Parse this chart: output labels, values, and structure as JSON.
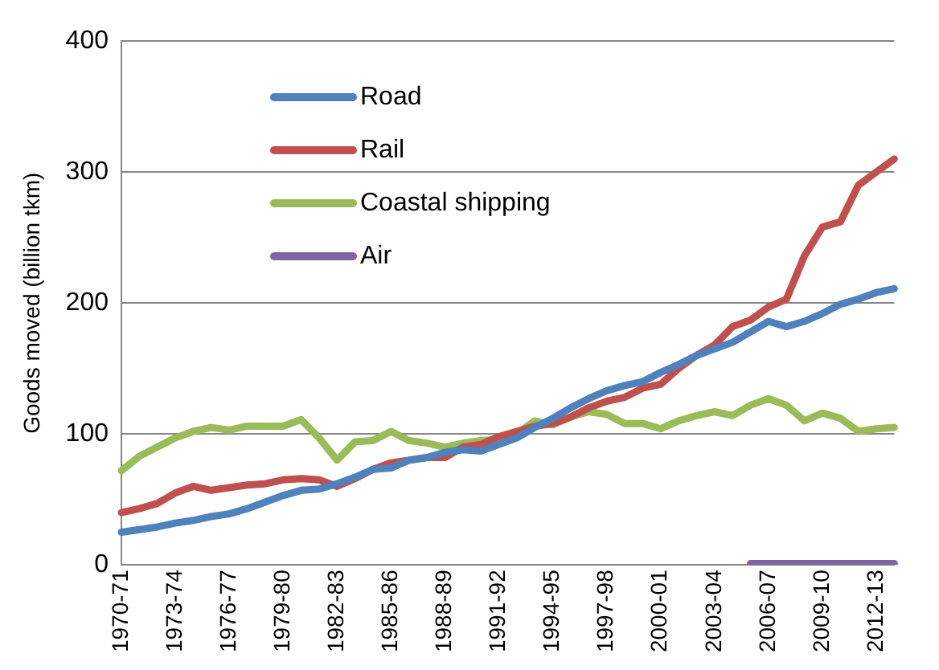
{
  "chart_data": {
    "type": "line",
    "ylabel": "Goods moved (billion tkm)",
    "categories": [
      "1970-71",
      null,
      null,
      "1973-74",
      null,
      null,
      "1976-77",
      null,
      null,
      "1979-80",
      null,
      null,
      "1982-83",
      null,
      null,
      "1985-86",
      null,
      null,
      "1988-89",
      null,
      null,
      "1991-92",
      null,
      null,
      "1994-95",
      null,
      null,
      "1997-98",
      null,
      null,
      "2000-01",
      null,
      null,
      "2003-04",
      null,
      null,
      "2006-07",
      null,
      null,
      "2009-10",
      null,
      null,
      "2012-13",
      null
    ],
    "series": [
      {
        "name": "Road",
        "color": "#4f81bd",
        "values": [
          25,
          27,
          29,
          32,
          34,
          37,
          39,
          43,
          48,
          53,
          57,
          58,
          62,
          67,
          73,
          74,
          80,
          82,
          86,
          88,
          87,
          92,
          97,
          105,
          112,
          120,
          127,
          133,
          137,
          140,
          147,
          153,
          160,
          165,
          170,
          178,
          186,
          182,
          186,
          192,
          199,
          203,
          208,
          211
        ]
      },
      {
        "name": "Rail",
        "color": "#c0504d",
        "values": [
          40,
          43,
          47,
          55,
          60,
          57,
          59,
          61,
          62,
          65,
          66,
          65,
          60,
          66,
          73,
          78,
          80,
          82,
          82,
          90,
          92,
          98,
          102,
          106,
          108,
          113,
          120,
          125,
          128,
          135,
          138,
          150,
          160,
          168,
          182,
          187,
          197,
          203,
          236,
          258,
          262,
          290,
          300,
          310
        ]
      },
      {
        "name": "Coastal shipping",
        "color": "#9bbb59",
        "values": [
          72,
          83,
          90,
          97,
          102,
          105,
          103,
          106,
          106,
          106,
          111,
          97,
          80,
          94,
          95,
          102,
          95,
          93,
          90,
          93,
          95,
          96,
          100,
          110,
          107,
          113,
          117,
          115,
          108,
          108,
          104,
          110,
          114,
          117,
          114,
          122,
          127,
          122,
          110,
          116,
          112,
          102,
          104,
          105
        ]
      },
      {
        "name": "Air",
        "color": "#8064a2",
        "values": [
          null,
          null,
          null,
          null,
          null,
          null,
          null,
          null,
          null,
          null,
          null,
          null,
          null,
          null,
          null,
          null,
          null,
          null,
          null,
          null,
          null,
          null,
          null,
          null,
          null,
          null,
          null,
          null,
          null,
          null,
          null,
          null,
          null,
          null,
          null,
          1,
          1,
          1,
          1,
          1,
          1,
          1,
          1,
          1
        ]
      }
    ],
    "ylim": [
      0,
      400
    ],
    "yticks": [
      0,
      100,
      200,
      300,
      400
    ],
    "grid": "y",
    "legend": "top left",
    "marker": "none",
    "line_style": "solid"
  }
}
